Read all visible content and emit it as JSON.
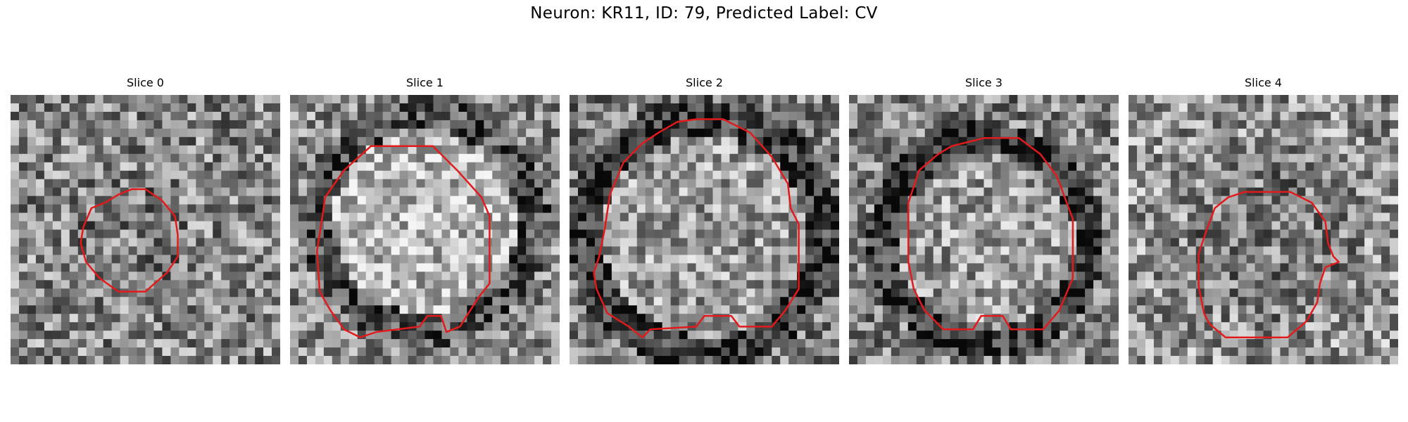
{
  "figure": {
    "title": "Neuron: KR11, ID: 79, Predicted Label: CV"
  },
  "panels": [
    {
      "title": "Slice 0",
      "seed": 11
    },
    {
      "title": "Slice 1",
      "seed": 23
    },
    {
      "title": "Slice 2",
      "seed": 37
    },
    {
      "title": "Slice 3",
      "seed": 41
    },
    {
      "title": "Slice 4",
      "seed": 59
    }
  ],
  "contour_color": "#e31a1c"
}
